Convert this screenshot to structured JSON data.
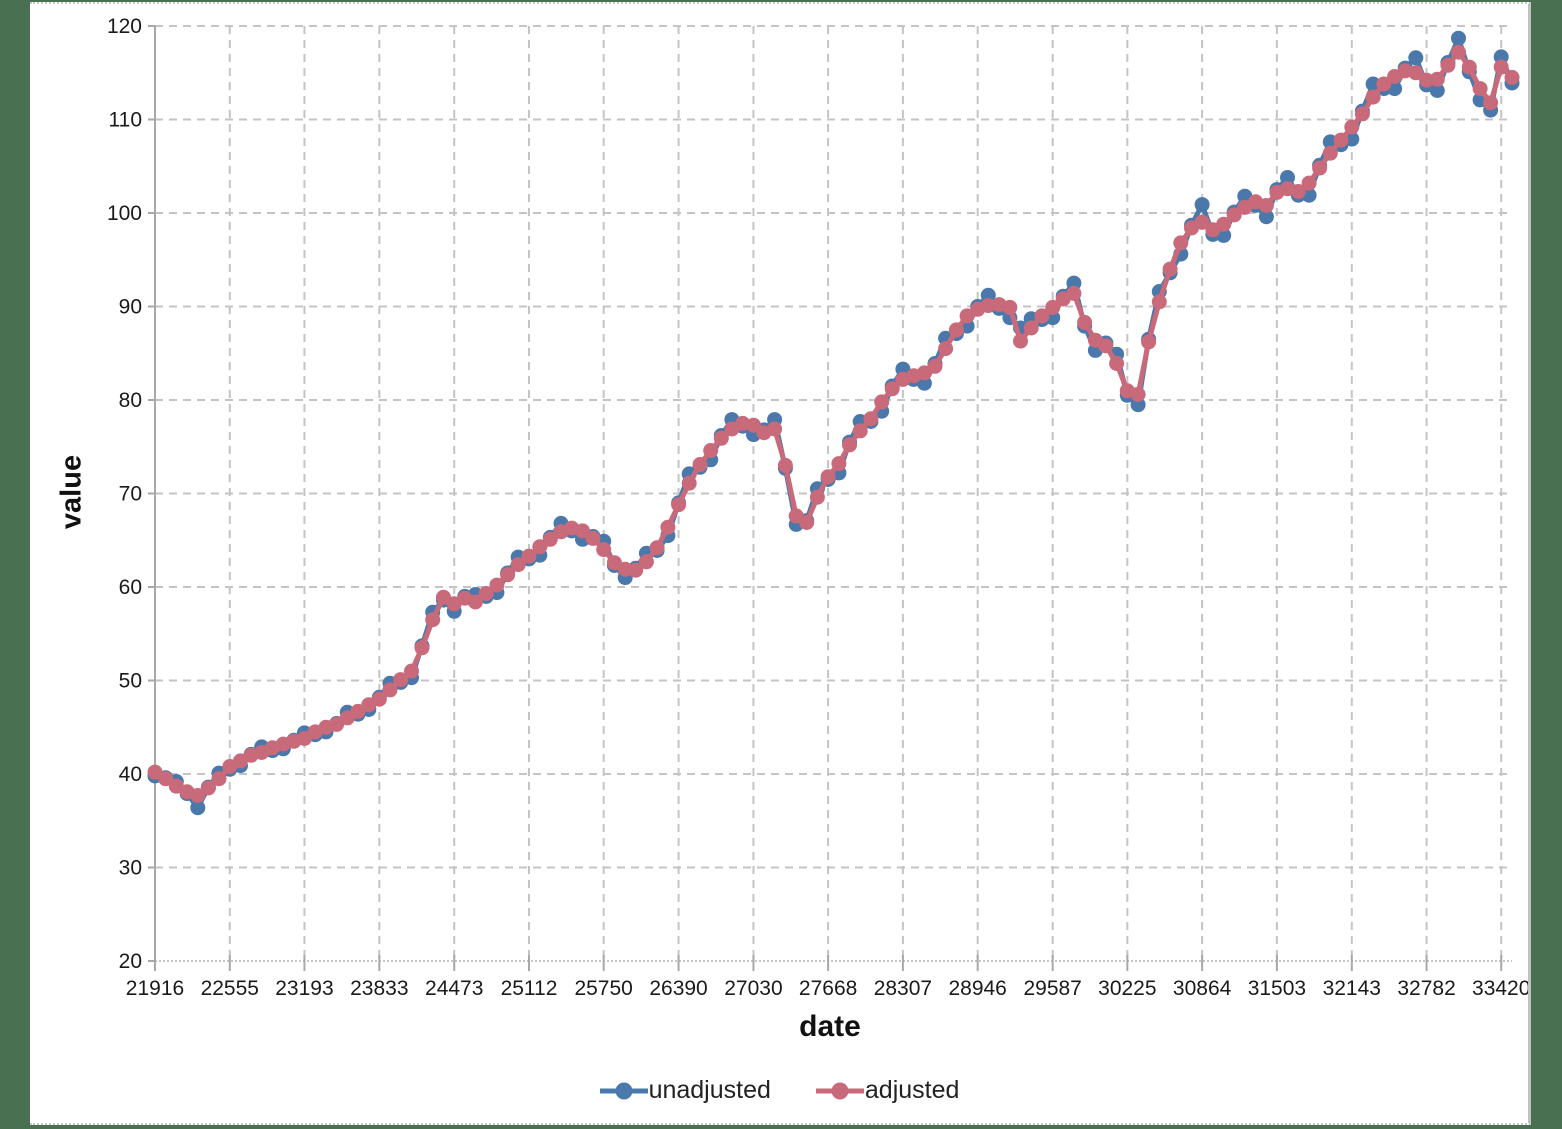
{
  "page": {
    "background_color": "#4A7052",
    "panel_color": "#ffffff"
  },
  "chart_data": {
    "type": "line",
    "title": "",
    "xlabel": "date",
    "ylabel": "value",
    "grid": true,
    "grid_color": "#c4c4c4",
    "axis_color": "#a8a8a8",
    "legend_position": "bottom-center",
    "xlim": [
      21916,
      33512
    ],
    "ylim": [
      20,
      120
    ],
    "x_ticks": [
      21916,
      22555,
      23193,
      23833,
      24473,
      25112,
      25750,
      26390,
      27030,
      27668,
      28307,
      28946,
      29587,
      30225,
      30864,
      31503,
      32143,
      32782,
      33420
    ],
    "y_ticks": [
      20,
      30,
      40,
      50,
      60,
      70,
      80,
      90,
      100,
      110,
      120
    ],
    "x": [
      21916,
      22007,
      22098,
      22190,
      22282,
      22372,
      22463,
      22555,
      22647,
      22737,
      22828,
      22920,
      23012,
      23102,
      23193,
      23285,
      23377,
      23468,
      23559,
      23651,
      23743,
      23833,
      23924,
      24016,
      24108,
      24198,
      24289,
      24381,
      24473,
      24563,
      24654,
      24746,
      24838,
      24929,
      25020,
      25112,
      25204,
      25294,
      25385,
      25477,
      25569,
      25659,
      25750,
      25842,
      25934,
      26024,
      26115,
      26207,
      26299,
      26390,
      26481,
      26573,
      26665,
      26755,
      26846,
      26938,
      27030,
      27120,
      27211,
      27303,
      27395,
      27485,
      27576,
      27668,
      27760,
      27851,
      27942,
      28034,
      28126,
      28216,
      28307,
      28399,
      28491,
      28581,
      28672,
      28764,
      28856,
      28946,
      29037,
      29129,
      29221,
      29312,
      29403,
      29495,
      29587,
      29677,
      29768,
      29860,
      29952,
      30042,
      30133,
      30225,
      30317,
      30407,
      30498,
      30590,
      30682,
      30773,
      30864,
      30956,
      31048,
      31138,
      31229,
      31321,
      31413,
      31503,
      31594,
      31686,
      31778,
      31868,
      31959,
      32051,
      32143,
      32234,
      32325,
      32417,
      32509,
      32599,
      32690,
      32782,
      32874,
      32964,
      33055,
      33147,
      33239,
      33329,
      33420,
      33512
    ],
    "series": [
      {
        "name": "unadjusted",
        "color": "#4A78AB",
        "values": [
          39.8,
          39.6,
          39.2,
          37.9,
          36.4,
          38.6,
          40.1,
          40.5,
          40.9,
          42.1,
          42.9,
          42.5,
          42.7,
          43.6,
          44.4,
          44.2,
          44.5,
          45.4,
          46.6,
          46.4,
          46.9,
          48.2,
          49.7,
          49.8,
          50.3,
          53.7,
          57.3,
          58.6,
          57.4,
          59.0,
          59.2,
          59.0,
          59.4,
          61.5,
          63.2,
          63.0,
          63.4,
          65.3,
          66.8,
          66.0,
          65.1,
          65.4,
          64.9,
          62.3,
          61.0,
          62.0,
          63.6,
          63.9,
          65.5,
          69.0,
          72.1,
          72.8,
          73.6,
          76.2,
          77.9,
          77.2,
          76.3,
          76.8,
          77.9,
          72.7,
          66.7,
          67.1,
          70.5,
          71.5,
          72.2,
          75.5,
          77.7,
          77.7,
          78.8,
          81.5,
          83.3,
          82.2,
          81.8,
          83.9,
          86.6,
          87.1,
          87.9,
          90.0,
          91.2,
          89.8,
          88.8,
          87.7,
          88.7,
          88.6,
          88.8,
          91.1,
          92.5,
          87.9,
          85.3,
          86.1,
          84.9,
          80.5,
          79.5,
          86.5,
          91.6,
          93.6,
          95.6,
          98.7,
          100.9,
          97.7,
          97.6,
          100.1,
          101.8,
          100.8,
          99.6,
          102.5,
          103.8,
          101.9,
          101.9,
          105.1,
          107.6,
          107.3,
          107.9,
          110.9,
          113.8,
          113.3,
          113.3,
          115.5,
          116.6,
          113.7,
          113.1,
          116.1,
          118.7,
          115.1,
          112.1,
          111.0,
          116.7,
          113.9
        ]
      },
      {
        "name": "adjusted",
        "color": "#C96A7B",
        "values": [
          40.2,
          39.5,
          38.7,
          38.1,
          37.7,
          38.5,
          39.5,
          40.8,
          41.4,
          42.0,
          42.3,
          42.8,
          43.2,
          43.5,
          43.8,
          44.5,
          45.0,
          45.3,
          46.0,
          46.7,
          47.4,
          48.0,
          49.0,
          50.1,
          51.0,
          53.5,
          56.5,
          58.9,
          58.2,
          58.8,
          58.4,
          59.3,
          60.2,
          61.3,
          62.4,
          63.3,
          64.3,
          65.1,
          65.9,
          66.3,
          66.0,
          65.2,
          64.0,
          62.6,
          61.9,
          61.8,
          62.7,
          64.2,
          66.4,
          68.8,
          71.1,
          73.1,
          74.6,
          75.9,
          76.9,
          77.5,
          77.3,
          76.5,
          76.9,
          73.0,
          67.6,
          66.9,
          69.6,
          71.8,
          73.2,
          75.2,
          76.7,
          78.0,
          79.8,
          81.2,
          82.2,
          82.6,
          82.9,
          83.6,
          85.5,
          87.5,
          89.0,
          89.7,
          90.1,
          90.2,
          89.9,
          86.3,
          87.7,
          89.0,
          89.9,
          90.8,
          91.4,
          88.3,
          86.4,
          85.8,
          83.9,
          81.0,
          80.6,
          86.2,
          90.5,
          94.0,
          96.8,
          98.4,
          99.0,
          98.2,
          98.8,
          99.8,
          100.6,
          101.2,
          100.8,
          102.2,
          102.6,
          102.3,
          103.2,
          104.8,
          106.4,
          107.8,
          109.2,
          110.6,
          112.4,
          113.8,
          114.6,
          115.2,
          115.0,
          114.2,
          114.3,
          115.8,
          117.2,
          115.6,
          113.3,
          111.8,
          115.6,
          114.5
        ]
      }
    ]
  }
}
